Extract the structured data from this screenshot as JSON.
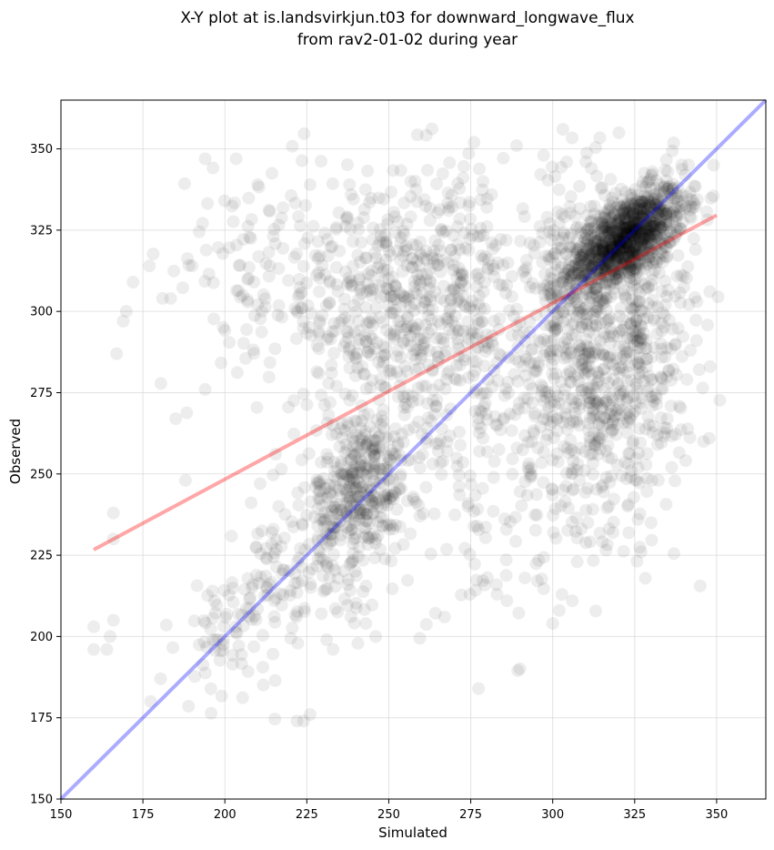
{
  "chart_data": {
    "type": "scatter",
    "title_line1": "X-Y plot at is.landsvirkjun.t03 for downward_longwave_flux",
    "title_line2": "from rav2-01-02 during year",
    "xlabel": "Simulated",
    "ylabel": "Observed",
    "xlim": [
      150,
      365
    ],
    "ylim": [
      150,
      365
    ],
    "xticks": [
      150,
      175,
      200,
      225,
      250,
      275,
      300,
      325,
      350
    ],
    "yticks": [
      150,
      175,
      200,
      225,
      250,
      275,
      300,
      325,
      350
    ],
    "grid": true,
    "point_color": "#000000",
    "point_alpha": 0.07,
    "clusters": [
      {
        "cx": 322,
        "cy": 322,
        "sx": 9,
        "sy": 8,
        "count": 1000,
        "rho": 0.6
      },
      {
        "cx": 318,
        "cy": 290,
        "sx": 13,
        "sy": 28,
        "count": 800,
        "rho": 0.1
      },
      {
        "cx": 242,
        "cy": 245,
        "sx": 7,
        "sy": 13,
        "count": 330,
        "rho": 0.2
      },
      {
        "cx": 228,
        "cy": 232,
        "sx": 11,
        "sy": 16,
        "count": 130,
        "rho": 0.3
      },
      {
        "cx": 255,
        "cy": 303,
        "sx": 22,
        "sy": 20,
        "count": 600,
        "rho": 0.0
      },
      {
        "cx": 282,
        "cy": 268,
        "sx": 20,
        "sy": 30,
        "count": 320,
        "rho": 0.0
      },
      {
        "cx": 210,
        "cy": 315,
        "sx": 12,
        "sy": 16,
        "count": 90,
        "rho": 0.0
      },
      {
        "cx": 205,
        "cy": 205,
        "sx": 10,
        "sy": 12,
        "count": 100,
        "rho": 0.5
      }
    ],
    "outliers": [
      [
        160,
        196
      ],
      [
        160,
        203
      ],
      [
        164,
        196
      ],
      [
        165,
        200
      ],
      [
        166,
        205
      ],
      [
        166,
        230
      ],
      [
        166,
        238
      ],
      [
        167,
        287
      ],
      [
        169,
        297
      ],
      [
        172,
        309
      ],
      [
        177,
        314
      ],
      [
        181,
        304
      ],
      [
        185,
        267
      ],
      [
        188,
        248
      ],
      [
        190,
        314
      ],
      [
        222,
        174
      ],
      [
        224,
        174
      ],
      [
        226,
        176
      ],
      [
        346,
        260
      ],
      [
        348,
        283
      ],
      [
        344,
        303
      ],
      [
        342,
        288
      ],
      [
        330,
        235
      ],
      [
        326,
        236
      ],
      [
        324,
        251
      ],
      [
        300,
        204
      ],
      [
        302,
        208
      ],
      [
        306,
        211
      ],
      [
        283,
        213
      ],
      [
        286,
        211
      ],
      [
        267,
        206
      ],
      [
        246,
        200
      ],
      [
        243,
        204
      ],
      [
        233,
        196
      ],
      [
        276,
        352
      ],
      [
        289,
        351
      ],
      [
        238,
        339
      ],
      [
        226,
        339
      ],
      [
        210,
        339
      ],
      [
        194,
        276
      ]
    ],
    "lines": [
      {
        "name": "",
        "color": "#ff0000",
        "alpha": 0.35,
        "x": [
          160,
          350
        ],
        "y": [
          226.7,
          329.6
        ]
      },
      {
        "name": "",
        "color": "#0000ff",
        "alpha": 0.33,
        "x": [
          150,
          365
        ],
        "y": [
          150,
          365
        ]
      }
    ]
  }
}
